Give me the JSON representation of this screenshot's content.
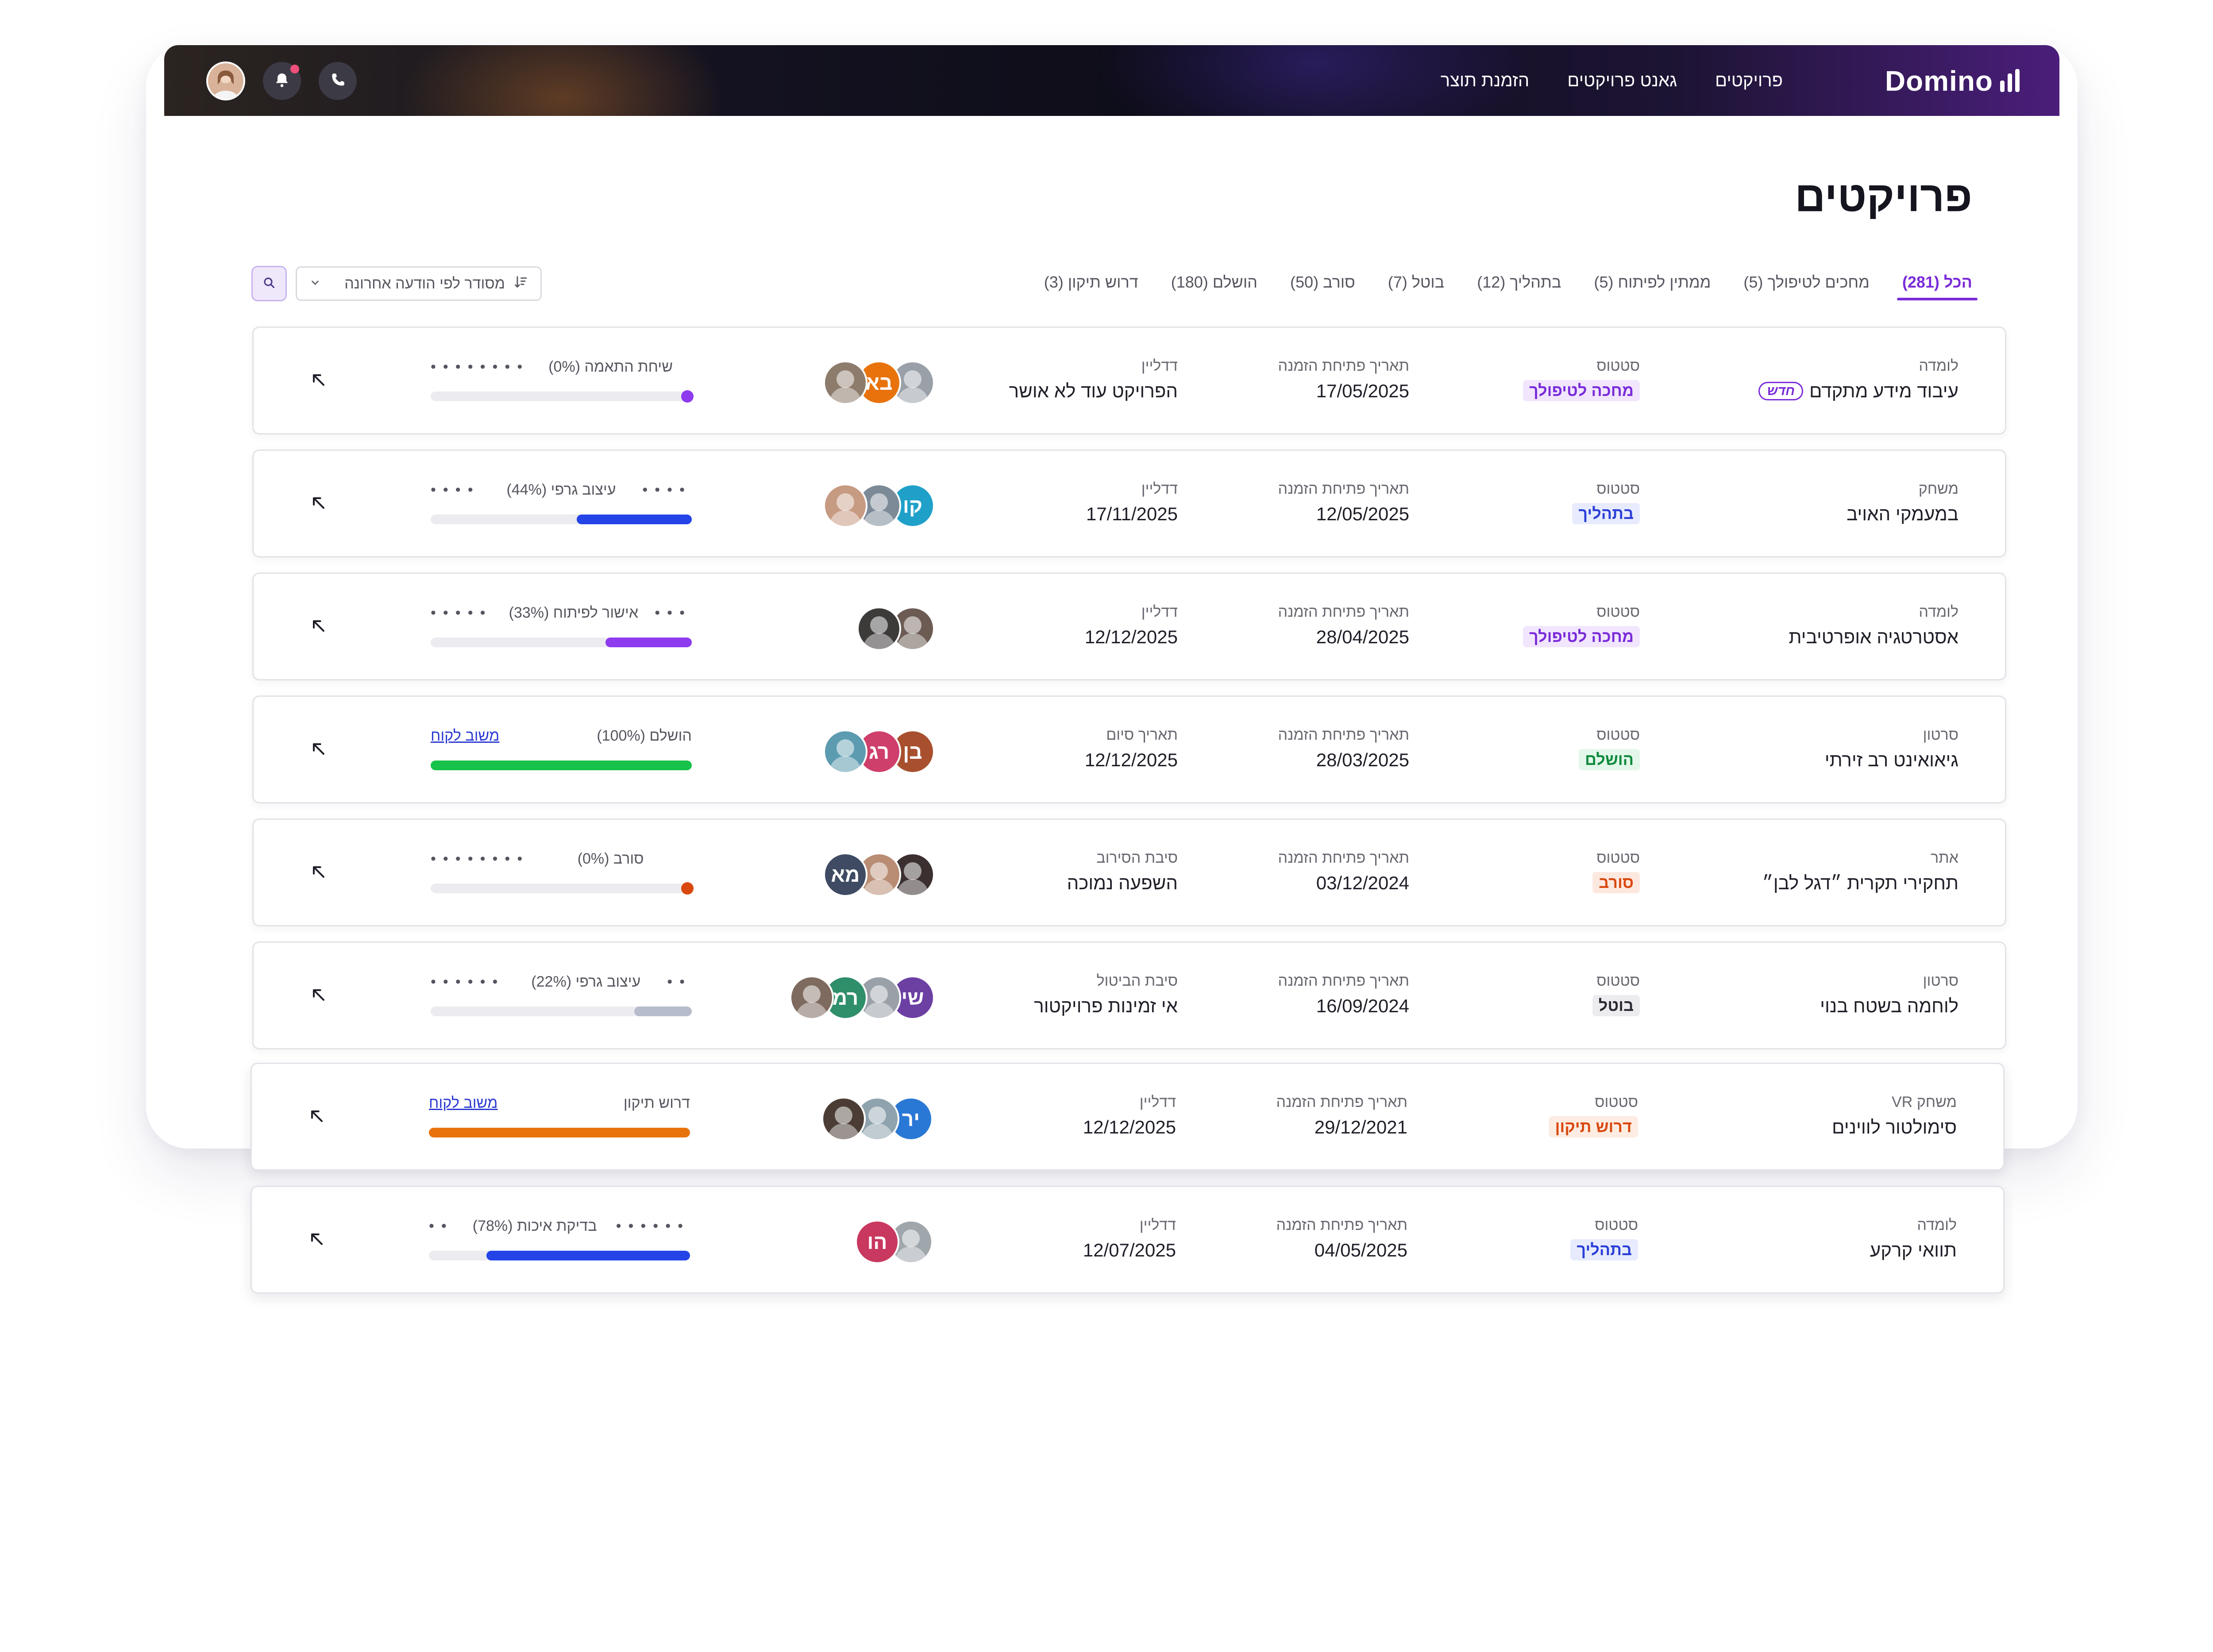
{
  "brand": {
    "name": "Domino"
  },
  "nav": {
    "links": [
      "פרויקטים",
      "גאנט פרויקטים",
      "הזמנת תוצר"
    ],
    "icons": [
      "phone-icon",
      "bell-icon",
      "user-avatar"
    ],
    "accent": "#7a2bd9"
  },
  "page": {
    "title": "פרויקטים"
  },
  "tabs": [
    {
      "label": "הכל (281)",
      "active": true
    },
    {
      "label": "מחכים לטיפולך (5)",
      "active": false
    },
    {
      "label": "ממתין לפיתוח (5)",
      "active": false
    },
    {
      "label": "בתהליך (12)",
      "active": false
    },
    {
      "label": "בוטל (7)",
      "active": false
    },
    {
      "label": "סורב (50)",
      "active": false
    },
    {
      "label": "הושלם (180)",
      "active": false
    },
    {
      "label": "דרוש תיקון (3)",
      "active": false
    }
  ],
  "sort": {
    "label": "מסודר לפי הודעה אחרונה"
  },
  "projects": [
    {
      "type": "לומדה",
      "name": "עיבוד מידע מתקדם",
      "new_label": "חדש",
      "status_label": "סטטוס",
      "status": "מחכה לטיפולך",
      "status_color": "#7a2bd9",
      "status_bg": "#f1e6fd",
      "open_label": "תאריך פתיחת הזמנה",
      "open_date": "17/05/2025",
      "third_label": "דדליין",
      "third_value": "הפרויקט עוד לא אושר",
      "avatars": [
        {
          "initials": "",
          "color": "#9aa0a8",
          "photo": true
        },
        {
          "initials": "בא",
          "color": "#e8730c",
          "photo": false
        },
        {
          "initials": "",
          "color": "#8d7b6c",
          "photo": true
        }
      ],
      "progress_text": "שיחת התאמה (0%)",
      "progress": 0,
      "progress_color": "#8e3bef",
      "dots_before": 0,
      "dots_after": 8,
      "link": ""
    },
    {
      "type": "משחק",
      "name": "במעמקי האויב",
      "new_label": "",
      "status_label": "סטטוס",
      "status": "בתהליך",
      "status_color": "#2b3fd6",
      "status_bg": "#e7ebfd",
      "open_label": "תאריך פתיחת הזמנה",
      "open_date": "12/05/2025",
      "third_label": "דדליין",
      "third_value": "17/11/2025",
      "avatars": [
        {
          "initials": "קו",
          "color": "#1fa0c9",
          "photo": false
        },
        {
          "initials": "",
          "color": "#7c8a98",
          "photo": true
        },
        {
          "initials": "",
          "color": "#c79a82",
          "photo": true
        }
      ],
      "progress_text": "עיצוב גרפי (44%)",
      "progress": 0.44,
      "progress_color": "#2444e8",
      "dots_before": 4,
      "dots_after": 4,
      "link": ""
    },
    {
      "type": "לומדה",
      "name": "אסטרטגיה אופרטיבית",
      "new_label": "",
      "status_label": "סטטוס",
      "status": "מחכה לטיפולך",
      "status_color": "#7a2bd9",
      "status_bg": "#f1e6fd",
      "open_label": "תאריך פתיחת הזמנה",
      "open_date": "28/04/2025",
      "third_label": "דדליין",
      "third_value": "12/12/2025",
      "avatars": [
        {
          "initials": "",
          "color": "#6b5b53",
          "photo": true
        },
        {
          "initials": "",
          "color": "#3d3a3a",
          "photo": true
        }
      ],
      "progress_text": "אישור לפיתוח (33%)",
      "progress": 0.33,
      "progress_color": "#8e3bef",
      "dots_before": 3,
      "dots_after": 5,
      "link": ""
    },
    {
      "type": "סרטון",
      "name": "גיאואינט רב זירתי",
      "new_label": "",
      "status_label": "סטטוס",
      "status": "הושלם",
      "status_color": "#0f8a3d",
      "status_bg": "#e3f7ea",
      "open_label": "תאריך פתיחת הזמנה",
      "open_date": "28/03/2025",
      "third_label": "תאריך סיום",
      "third_value": "12/12/2025",
      "avatars": [
        {
          "initials": "בן",
          "color": "#a8502e",
          "photo": false
        },
        {
          "initials": "רג",
          "color": "#cf3f6b",
          "photo": false
        },
        {
          "initials": "",
          "color": "#5c9bb0",
          "photo": true
        }
      ],
      "progress_text": "הושלם (100%)",
      "progress": 1.0,
      "progress_color": "#17c24a",
      "dots_before": 0,
      "dots_after": 0,
      "link": "משוב לקוח"
    },
    {
      "type": "אתר",
      "name": "תחקירי תקרית ״דגל לבן״",
      "new_label": "",
      "status_label": "סטטוס",
      "status": "סורב",
      "status_color": "#d9480f",
      "status_bg": "#fde8df",
      "open_label": "תאריך פתיחת הזמנה",
      "open_date": "03/12/2024",
      "third_label": "סיבת הסירוב",
      "third_value": "השפעה נמוכה",
      "avatars": [
        {
          "initials": "",
          "color": "#3b2f2f",
          "photo": true
        },
        {
          "initials": "",
          "color": "#b98c74",
          "photo": true
        },
        {
          "initials": "מא",
          "color": "#3e4b63",
          "photo": false
        }
      ],
      "progress_text": "סורב (0%)",
      "progress": 0,
      "progress_color": "#d9480f",
      "dots_before": 0,
      "dots_after": 8,
      "link": ""
    },
    {
      "type": "סרטון",
      "name": "לוחמה בשטח בנוי",
      "new_label": "",
      "status_label": "סטטוס",
      "status": "בוטל",
      "status_color": "#2a2a33",
      "status_bg": "#ececef",
      "open_label": "תאריך פתיחת הזמנה",
      "open_date": "16/09/2024",
      "third_label": "סיבת הביטול",
      "third_value": "אי זמינות פרויקטור",
      "avatars": [
        {
          "initials": "שי",
          "color": "#6c3fa3",
          "photo": false
        },
        {
          "initials": "",
          "color": "#9aa0a8",
          "photo": true
        },
        {
          "initials": "רמ",
          "color": "#2f8f6b",
          "photo": false
        },
        {
          "initials": "",
          "color": "#7e6a5e",
          "photo": true
        }
      ],
      "progress_text": "עיצוב גרפי (22%)",
      "progress": 0.22,
      "progress_color": "#b6bccb",
      "dots_before": 2,
      "dots_after": 6,
      "link": ""
    },
    {
      "type": "משחק VR",
      "name": "סימולטור לווינים",
      "new_label": "",
      "status_label": "סטטוס",
      "status": "דרוש תיקון",
      "status_color": "#d9480f",
      "status_bg": "#fdece2",
      "open_label": "תאריך פתיחת הזמנה",
      "open_date": "29/12/2021",
      "third_label": "דדליין",
      "third_value": "12/12/2025",
      "avatars": [
        {
          "initials": "יר",
          "color": "#2a78d6",
          "photo": false
        },
        {
          "initials": "",
          "color": "#8ea3ad",
          "photo": true
        },
        {
          "initials": "",
          "color": "#4b3d35",
          "photo": true
        }
      ],
      "progress_text": "דרוש תיקון",
      "progress": 1.0,
      "progress_color": "#e8730c",
      "dots_before": 0,
      "dots_after": 0,
      "link": "משוב לקוח"
    },
    {
      "type": "לומדה",
      "name": "תוואי קרקע",
      "new_label": "",
      "status_label": "סטטוס",
      "status": "בתהליך",
      "status_color": "#2b3fd6",
      "status_bg": "#e7ebfd",
      "open_label": "תאריך פתיחת הזמנה",
      "open_date": "04/05/2025",
      "third_label": "דדליין",
      "third_value": "12/07/2025",
      "avatars": [
        {
          "initials": "",
          "color": "#9fa7ad",
          "photo": true
        },
        {
          "initials": "הו",
          "color": "#c8385f",
          "photo": false
        }
      ],
      "progress_text": "בדיקת איכות (78%)",
      "progress": 0.78,
      "progress_color": "#2444e8",
      "dots_before": 6,
      "dots_after": 2,
      "link": ""
    }
  ]
}
